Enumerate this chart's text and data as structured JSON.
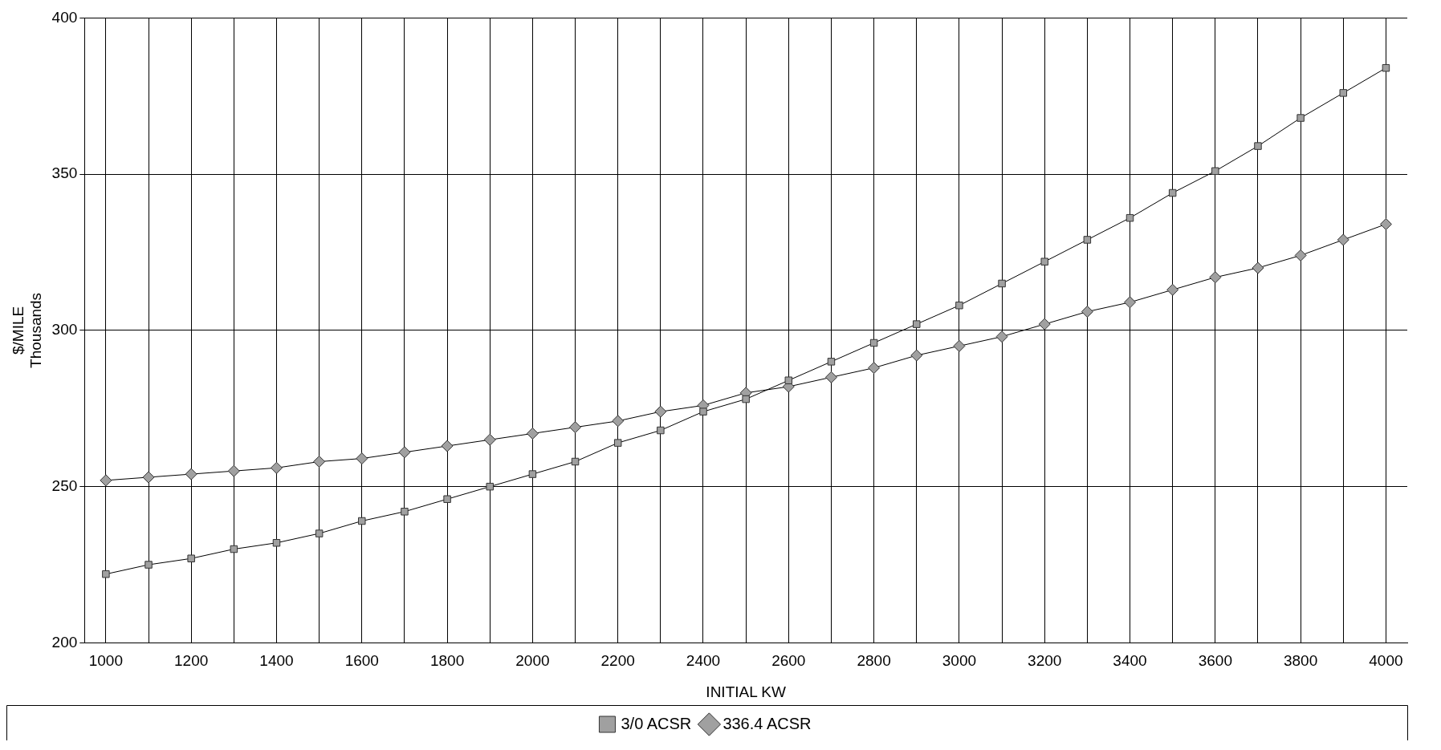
{
  "chart_data": {
    "type": "line",
    "xlabel": "INITIAL KW",
    "ylabel": "$/MILE\nThousands",
    "categories": [
      "1000",
      null,
      "1200",
      null,
      "1400",
      null,
      "1600",
      null,
      "1800",
      null,
      "2000",
      null,
      "2200",
      null,
      "2400",
      null,
      "2600",
      null,
      "2800",
      null,
      "3000",
      null,
      "3200",
      null,
      "3400",
      null,
      "3600",
      null,
      "3800",
      null,
      "4000"
    ],
    "series": [
      {
        "name": "3/0 ACSR",
        "color": "#a0a0a0",
        "marker": "square",
        "values": [
          222,
          225,
          227,
          230,
          232,
          235,
          239,
          242,
          246,
          250,
          254,
          258,
          264,
          268,
          274,
          278,
          284,
          290,
          296,
          302,
          308,
          315,
          322,
          329,
          336,
          344,
          351,
          359,
          368,
          376,
          384
        ]
      },
      {
        "name": "336.4 ACSR",
        "color": "#a0a0a0",
        "marker": "diamond",
        "values": [
          252,
          253,
          254,
          255,
          256,
          258,
          259,
          261,
          263,
          265,
          267,
          269,
          271,
          274,
          276,
          280,
          282,
          285,
          288,
          292,
          295,
          298,
          302,
          306,
          309,
          313,
          317,
          320,
          324,
          329,
          334
        ]
      }
    ],
    "ylim": [
      200,
      400
    ],
    "yticks": [
      200,
      250,
      300,
      350,
      400
    ],
    "grid": true,
    "legend": "bottom",
    "line_style": "solid"
  }
}
